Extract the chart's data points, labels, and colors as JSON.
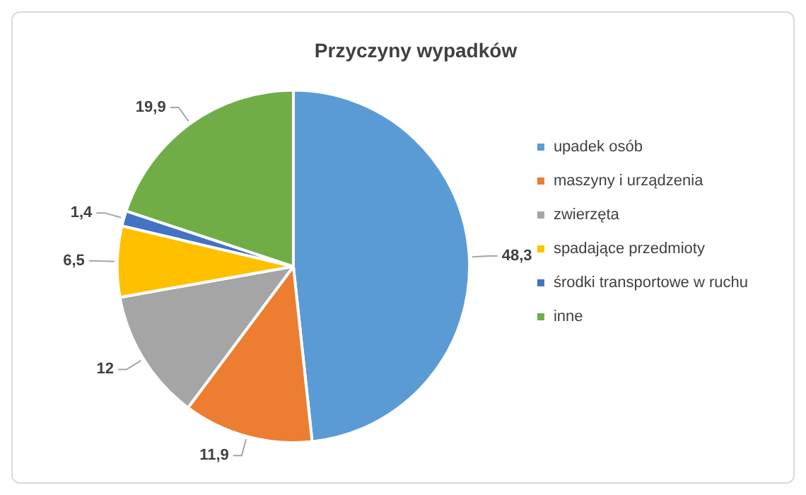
{
  "chart_data": {
    "type": "pie",
    "title": "Przyczyny wypadków",
    "categories": [
      "upadek osób",
      "maszyny i urządzenia",
      "zwierzęta",
      "spadające przedmioty",
      "środki transportowe w ruchu",
      "inne"
    ],
    "values": [
      48.3,
      11.9,
      12,
      6.5,
      1.4,
      19.9
    ],
    "colors": [
      "#5b9bd5",
      "#ed7d31",
      "#a5a5a5",
      "#ffc000",
      "#4472c4",
      "#70ad47"
    ],
    "value_labels": [
      "48,3",
      "11,9",
      "12",
      "6,5",
      "1,4",
      "19,9"
    ],
    "legend": "right"
  }
}
